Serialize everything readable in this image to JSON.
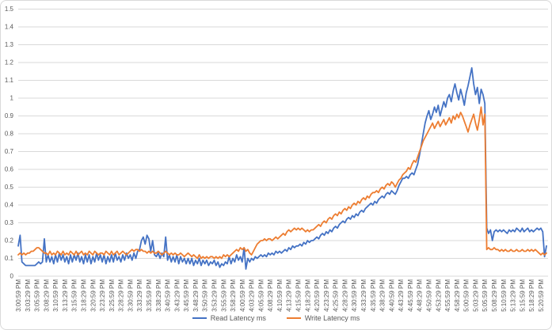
{
  "colors": {
    "read_series": "#4472C4",
    "write_series": "#ED7D31",
    "grid": "#D9D9D9",
    "axis_text": "#595959",
    "background": "#FFFFFF",
    "border": "#D9D9D9"
  },
  "chart_data": {
    "type": "line",
    "title": "",
    "xlabel": "",
    "ylabel": "",
    "ylim": [
      0,
      1.5
    ],
    "y_ticks": [
      0,
      0.1,
      0.2,
      0.3,
      0.4,
      0.5,
      0.6,
      0.7,
      0.8,
      0.9,
      1,
      1.1,
      1.2,
      1.3,
      1.4,
      1.5
    ],
    "grid": "horizontal",
    "legend_position": "bottom",
    "sample_interval_seconds": 30,
    "x_label_every_n_samples": 5,
    "x_labels": [
      "3:00:59 PM",
      "3:03:29 PM",
      "3:05:59 PM",
      "3:08:29 PM",
      "3:10:59 PM",
      "3:13:29 PM",
      "3:15:59 PM",
      "3:18:29 PM",
      "3:20:59 PM",
      "3:23:29 PM",
      "3:25:59 PM",
      "3:28:29 PM",
      "3:30:59 PM",
      "3:33:29 PM",
      "3:35:59 PM",
      "3:38:29 PM",
      "3:40:59 PM",
      "3:43:29 PM",
      "3:45:59 PM",
      "3:48:29 PM",
      "3:50:59 PM",
      "3:53:29 PM",
      "3:55:59 PM",
      "3:58:29 PM",
      "4:00:59 PM",
      "4:03:29 PM",
      "4:05:59 PM",
      "4:08:29 PM",
      "4:10:59 PM",
      "4:13:29 PM",
      "4:15:59 PM",
      "4:18:29 PM",
      "4:20:59 PM",
      "4:23:29 PM",
      "4:25:59 PM",
      "4:28:29 PM",
      "4:30:59 PM",
      "4:33:29 PM",
      "4:35:59 PM",
      "4:38:29 PM",
      "4:40:59 PM",
      "4:43:29 PM",
      "4:45:59 PM",
      "4:48:29 PM",
      "4:50:59 PM",
      "4:53:29 PM",
      "4:55:59 PM",
      "4:58:29 PM",
      "5:00:59 PM",
      "5:03:29 PM",
      "5:05:59 PM",
      "5:08:29 PM",
      "5:10:59 PM",
      "5:13:29 PM",
      "5:15:59 PM",
      "5:18:29 PM",
      "5:20:59 PM"
    ],
    "series": [
      {
        "name": "Read Latency ms",
        "color": "#4472C4",
        "values": [
          0.17,
          0.23,
          0.08,
          0.07,
          0.06,
          0.06,
          0.06,
          0.06,
          0.06,
          0.06,
          0.07,
          0.08,
          0.07,
          0.08,
          0.21,
          0.08,
          0.12,
          0.08,
          0.11,
          0.07,
          0.12,
          0.08,
          0.13,
          0.09,
          0.12,
          0.08,
          0.11,
          0.07,
          0.12,
          0.08,
          0.12,
          0.09,
          0.13,
          0.08,
          0.11,
          0.07,
          0.12,
          0.08,
          0.12,
          0.07,
          0.11,
          0.08,
          0.13,
          0.09,
          0.12,
          0.08,
          0.12,
          0.07,
          0.11,
          0.08,
          0.12,
          0.08,
          0.13,
          0.09,
          0.11,
          0.08,
          0.12,
          0.09,
          0.13,
          0.1,
          0.12,
          0.09,
          0.13,
          0.1,
          0.14,
          0.15,
          0.2,
          0.22,
          0.18,
          0.23,
          0.21,
          0.14,
          0.2,
          0.12,
          0.11,
          0.13,
          0.1,
          0.13,
          0.11,
          0.22,
          0.09,
          0.12,
          0.08,
          0.11,
          0.08,
          0.12,
          0.07,
          0.11,
          0.08,
          0.1,
          0.07,
          0.1,
          0.07,
          0.1,
          0.06,
          0.09,
          0.07,
          0.1,
          0.06,
          0.09,
          0.07,
          0.09,
          0.06,
          0.08,
          0.07,
          0.09,
          0.06,
          0.08,
          0.05,
          0.07,
          0.06,
          0.08,
          0.07,
          0.11,
          0.07,
          0.1,
          0.08,
          0.12,
          0.09,
          0.11,
          0.08,
          0.16,
          0.04,
          0.1,
          0.08,
          0.1,
          0.09,
          0.11,
          0.1,
          0.11,
          0.12,
          0.11,
          0.12,
          0.11,
          0.13,
          0.12,
          0.13,
          0.12,
          0.14,
          0.13,
          0.14,
          0.13,
          0.14,
          0.15,
          0.14,
          0.16,
          0.15,
          0.17,
          0.16,
          0.17,
          0.17,
          0.18,
          0.17,
          0.19,
          0.18,
          0.2,
          0.19,
          0.2,
          0.2,
          0.21,
          0.22,
          0.21,
          0.23,
          0.24,
          0.23,
          0.25,
          0.24,
          0.26,
          0.25,
          0.27,
          0.28,
          0.27,
          0.29,
          0.3,
          0.31,
          0.3,
          0.32,
          0.33,
          0.32,
          0.34,
          0.33,
          0.35,
          0.34,
          0.36,
          0.37,
          0.36,
          0.38,
          0.39,
          0.4,
          0.41,
          0.4,
          0.42,
          0.41,
          0.43,
          0.44,
          0.45,
          0.44,
          0.46,
          0.47,
          0.46,
          0.48,
          0.47,
          0.46,
          0.48,
          0.51,
          0.53,
          0.55,
          0.55,
          0.56,
          0.55,
          0.57,
          0.58,
          0.57,
          0.6,
          0.63,
          0.68,
          0.74,
          0.8,
          0.86,
          0.9,
          0.93,
          0.88,
          0.91,
          0.95,
          0.92,
          0.96,
          0.9,
          0.94,
          0.98,
          0.95,
          1.0,
          1.02,
          0.98,
          1.04,
          1.08,
          1.03,
          0.99,
          1.05,
          1.01,
          0.96,
          1.03,
          1.07,
          1.12,
          1.17,
          1.08,
          1.02,
          1.06,
          0.97,
          1.05,
          1.02,
          0.97,
          0.27,
          0.24,
          0.26,
          0.2,
          0.25,
          0.26,
          0.25,
          0.26,
          0.25,
          0.26,
          0.25,
          0.24,
          0.26,
          0.25,
          0.26,
          0.25,
          0.27,
          0.26,
          0.25,
          0.27,
          0.25,
          0.26,
          0.27,
          0.25,
          0.26,
          0.25,
          0.26,
          0.27,
          0.26,
          0.27,
          0.25,
          0.11,
          0.17
        ]
      },
      {
        "name": "Write Latency ms",
        "color": "#ED7D31",
        "values": [
          0.12,
          0.13,
          0.12,
          0.13,
          0.12,
          0.13,
          0.13,
          0.14,
          0.14,
          0.15,
          0.16,
          0.16,
          0.15,
          0.14,
          0.13,
          0.13,
          0.12,
          0.14,
          0.12,
          0.13,
          0.12,
          0.14,
          0.13,
          0.12,
          0.14,
          0.12,
          0.13,
          0.12,
          0.14,
          0.13,
          0.12,
          0.14,
          0.12,
          0.13,
          0.14,
          0.12,
          0.13,
          0.12,
          0.14,
          0.13,
          0.12,
          0.14,
          0.13,
          0.12,
          0.13,
          0.13,
          0.12,
          0.14,
          0.13,
          0.12,
          0.14,
          0.12,
          0.13,
          0.14,
          0.12,
          0.13,
          0.14,
          0.13,
          0.12,
          0.13,
          0.14,
          0.15,
          0.14,
          0.15,
          0.15,
          0.14,
          0.15,
          0.14,
          0.14,
          0.13,
          0.14,
          0.13,
          0.14,
          0.13,
          0.13,
          0.14,
          0.13,
          0.12,
          0.13,
          0.14,
          0.13,
          0.12,
          0.13,
          0.12,
          0.13,
          0.12,
          0.12,
          0.13,
          0.12,
          0.11,
          0.12,
          0.13,
          0.12,
          0.11,
          0.12,
          0.11,
          0.1,
          0.12,
          0.1,
          0.11,
          0.1,
          0.11,
          0.1,
          0.11,
          0.11,
          0.1,
          0.11,
          0.1,
          0.11,
          0.1,
          0.12,
          0.11,
          0.12,
          0.11,
          0.12,
          0.13,
          0.14,
          0.15,
          0.14,
          0.16,
          0.15,
          0.16,
          0.14,
          0.15,
          0.13,
          0.12,
          0.14,
          0.16,
          0.18,
          0.19,
          0.2,
          0.2,
          0.21,
          0.2,
          0.21,
          0.21,
          0.2,
          0.21,
          0.22,
          0.21,
          0.22,
          0.23,
          0.24,
          0.23,
          0.25,
          0.26,
          0.25,
          0.26,
          0.27,
          0.26,
          0.27,
          0.26,
          0.27,
          0.26,
          0.25,
          0.26,
          0.25,
          0.26,
          0.26,
          0.27,
          0.28,
          0.29,
          0.28,
          0.3,
          0.31,
          0.3,
          0.32,
          0.33,
          0.32,
          0.34,
          0.35,
          0.34,
          0.36,
          0.35,
          0.37,
          0.38,
          0.37,
          0.39,
          0.38,
          0.4,
          0.41,
          0.4,
          0.42,
          0.41,
          0.43,
          0.44,
          0.43,
          0.45,
          0.44,
          0.46,
          0.47,
          0.47,
          0.48,
          0.47,
          0.49,
          0.5,
          0.49,
          0.51,
          0.52,
          0.51,
          0.53,
          0.52,
          0.5,
          0.52,
          0.54,
          0.55,
          0.57,
          0.58,
          0.59,
          0.61,
          0.6,
          0.63,
          0.65,
          0.64,
          0.67,
          0.7,
          0.73,
          0.76,
          0.78,
          0.8,
          0.82,
          0.84,
          0.86,
          0.83,
          0.85,
          0.87,
          0.84,
          0.86,
          0.88,
          0.85,
          0.87,
          0.89,
          0.86,
          0.9,
          0.88,
          0.91,
          0.89,
          0.92,
          0.9,
          0.87,
          0.84,
          0.81,
          0.85,
          0.88,
          0.91,
          0.86,
          0.82,
          0.88,
          0.95,
          0.85,
          0.91,
          0.15,
          0.16,
          0.15,
          0.15,
          0.16,
          0.15,
          0.15,
          0.14,
          0.15,
          0.14,
          0.15,
          0.14,
          0.14,
          0.15,
          0.14,
          0.14,
          0.15,
          0.14,
          0.14,
          0.15,
          0.14,
          0.14,
          0.15,
          0.14,
          0.15,
          0.14,
          0.15,
          0.14,
          0.13,
          0.12,
          0.13,
          0.12,
          0.13
        ]
      }
    ]
  }
}
